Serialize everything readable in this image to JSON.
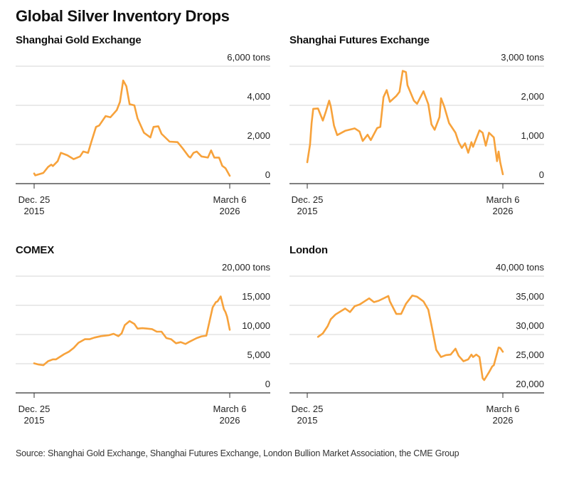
{
  "title": "Global Silver Inventory Drops",
  "source": "Source: Shanghai Gold Exchange, Shanghai Futures Exchange, London Bullion Market Association, the CME Group",
  "colors": {
    "line": "#f7a23b",
    "grid": "#d4d4d4",
    "axis": "#333333"
  },
  "chart_data": [
    {
      "type": "line",
      "title": "Shanghai Gold Exchange",
      "unit": "tons",
      "ylim": [
        0,
        6000
      ],
      "grid": true,
      "y_ticks": [
        {
          "value": 6000,
          "label": "6,000 tons"
        },
        {
          "value": 4000,
          "label": "4,000"
        },
        {
          "value": 2000,
          "label": "2,000"
        },
        {
          "value": 0,
          "label": "0"
        }
      ],
      "x_ticks": [
        {
          "date": "2015-12-25",
          "line1": "Dec. 25",
          "line2": "2015"
        },
        {
          "date": "2026-03-06",
          "line1": "March 6",
          "line2": "2026"
        }
      ],
      "points": [
        [
          "2015-12-25",
          520
        ],
        [
          "2016-01",
          420
        ],
        [
          "2016-06",
          545
        ],
        [
          "2016-09",
          850
        ],
        [
          "2016-11",
          970
        ],
        [
          "2016-12",
          900
        ],
        [
          "2017-03",
          1150
        ],
        [
          "2017-05",
          1575
        ],
        [
          "2017-09",
          1450
        ],
        [
          "2018-01",
          1250
        ],
        [
          "2018-05",
          1390
        ],
        [
          "2018-07",
          1640
        ],
        [
          "2018-10",
          1575
        ],
        [
          "2018-12",
          2120
        ],
        [
          "2019-03",
          2900
        ],
        [
          "2019-05",
          2970
        ],
        [
          "2019-09",
          3450
        ],
        [
          "2019-12",
          3390
        ],
        [
          "2020-04",
          3760
        ],
        [
          "2020-06",
          4180
        ],
        [
          "2020-08",
          5270
        ],
        [
          "2020-10",
          4970
        ],
        [
          "2020-12",
          4060
        ],
        [
          "2021-03",
          4000
        ],
        [
          "2021-05",
          3330
        ],
        [
          "2021-09",
          2600
        ],
        [
          "2022-01",
          2360
        ],
        [
          "2022-03",
          2900
        ],
        [
          "2022-06",
          2930
        ],
        [
          "2022-08",
          2545
        ],
        [
          "2023-01",
          2145
        ],
        [
          "2023-06",
          2120
        ],
        [
          "2023-09",
          1820
        ],
        [
          "2024-01",
          1390
        ],
        [
          "2024-02",
          1330
        ],
        [
          "2024-04",
          1575
        ],
        [
          "2024-06",
          1640
        ],
        [
          "2024-09",
          1390
        ],
        [
          "2025-01",
          1330
        ],
        [
          "2025-03",
          1700
        ],
        [
          "2025-05",
          1330
        ],
        [
          "2025-08",
          1330
        ],
        [
          "2025-10",
          910
        ],
        [
          "2025-12",
          790
        ],
        [
          "2026-03-06",
          400
        ]
      ]
    },
    {
      "type": "line",
      "title": "Shanghai Futures Exchange",
      "unit": "tons",
      "ylim": [
        0,
        3000
      ],
      "grid": true,
      "y_ticks": [
        {
          "value": 3000,
          "label": "3,000 tons"
        },
        {
          "value": 2000,
          "label": "2,000"
        },
        {
          "value": 1000,
          "label": "1,000"
        },
        {
          "value": 0,
          "label": "0"
        }
      ],
      "x_ticks": [
        {
          "date": "2015-12-25",
          "line1": "Dec. 25",
          "line2": "2015"
        },
        {
          "date": "2026-03-06",
          "line1": "March 6",
          "line2": "2026"
        }
      ],
      "points": [
        [
          "2015-12-25",
          545
        ],
        [
          "2016-02",
          1000
        ],
        [
          "2016-03",
          1545
        ],
        [
          "2016-04",
          1910
        ],
        [
          "2016-07",
          1920
        ],
        [
          "2016-10",
          1610
        ],
        [
          "2016-12",
          1850
        ],
        [
          "2017-02",
          2120
        ],
        [
          "2017-03",
          1970
        ],
        [
          "2017-05",
          1480
        ],
        [
          "2017-07",
          1240
        ],
        [
          "2017-12",
          1350
        ],
        [
          "2018-06",
          1410
        ],
        [
          "2018-09",
          1330
        ],
        [
          "2018-11",
          1090
        ],
        [
          "2019-02",
          1250
        ],
        [
          "2019-04",
          1110
        ],
        [
          "2019-08",
          1420
        ],
        [
          "2019-10",
          1450
        ],
        [
          "2019-12",
          2210
        ],
        [
          "2020-02",
          2390
        ],
        [
          "2020-04",
          2090
        ],
        [
          "2020-08",
          2240
        ],
        [
          "2020-10",
          2345
        ],
        [
          "2020-12",
          2880
        ],
        [
          "2021-02",
          2850
        ],
        [
          "2021-03",
          2515
        ],
        [
          "2021-07",
          2120
        ],
        [
          "2021-09",
          2040
        ],
        [
          "2022-01",
          2360
        ],
        [
          "2022-04",
          2030
        ],
        [
          "2022-06",
          1515
        ],
        [
          "2022-08",
          1375
        ],
        [
          "2022-11",
          1700
        ],
        [
          "2022-12",
          2180
        ],
        [
          "2023-02",
          1970
        ],
        [
          "2023-05",
          1545
        ],
        [
          "2023-09",
          1300
        ],
        [
          "2023-11",
          1060
        ],
        [
          "2024-01",
          910
        ],
        [
          "2024-03",
          1030
        ],
        [
          "2024-05",
          790
        ],
        [
          "2024-07",
          1060
        ],
        [
          "2024-08",
          940
        ],
        [
          "2024-12",
          1360
        ],
        [
          "2025-02",
          1300
        ],
        [
          "2025-04",
          970
        ],
        [
          "2025-06",
          1300
        ],
        [
          "2025-09",
          1180
        ],
        [
          "2025-11",
          575
        ],
        [
          "2025-12",
          820
        ],
        [
          "2026-01",
          545
        ],
        [
          "2026-03-06",
          240
        ]
      ]
    },
    {
      "type": "line",
      "title": "COMEX",
      "unit": "tons",
      "ylim": [
        0,
        20000
      ],
      "grid": true,
      "y_ticks": [
        {
          "value": 20000,
          "label": "20,000 tons"
        },
        {
          "value": 15000,
          "label": "15,000"
        },
        {
          "value": 10000,
          "label": "10,000"
        },
        {
          "value": 5000,
          "label": "5,000"
        },
        {
          "value": 0,
          "label": "0"
        }
      ],
      "x_ticks": [
        {
          "date": "2015-12-25",
          "line1": "Dec. 25",
          "line2": "2015"
        },
        {
          "date": "2026-03-06",
          "line1": "March 6",
          "line2": "2026"
        }
      ],
      "points": [
        [
          "2015-12-25",
          5060
        ],
        [
          "2016-03",
          4860
        ],
        [
          "2016-06",
          4740
        ],
        [
          "2016-09",
          5425
        ],
        [
          "2016-12",
          5750
        ],
        [
          "2017-02",
          5750
        ],
        [
          "2017-07",
          6640
        ],
        [
          "2017-10",
          7045
        ],
        [
          "2018-01",
          7690
        ],
        [
          "2018-04",
          8580
        ],
        [
          "2018-08",
          9190
        ],
        [
          "2018-11",
          9190
        ],
        [
          "2019-02",
          9470
        ],
        [
          "2019-06",
          9720
        ],
        [
          "2019-11",
          9880
        ],
        [
          "2020-02",
          10120
        ],
        [
          "2020-05",
          9720
        ],
        [
          "2020-07",
          10200
        ],
        [
          "2020-09",
          11620
        ],
        [
          "2020-12",
          12310
        ],
        [
          "2021-03",
          11820
        ],
        [
          "2021-05",
          11010
        ],
        [
          "2021-08",
          11090
        ],
        [
          "2021-11",
          11010
        ],
        [
          "2022-02",
          10930
        ],
        [
          "2022-05",
          10490
        ],
        [
          "2022-08",
          10490
        ],
        [
          "2022-11",
          9390
        ],
        [
          "2023-02",
          9190
        ],
        [
          "2023-05",
          8500
        ],
        [
          "2023-08",
          8700
        ],
        [
          "2023-11",
          8380
        ],
        [
          "2024-01",
          8700
        ],
        [
          "2024-06",
          9390
        ],
        [
          "2024-09",
          9680
        ],
        [
          "2024-12",
          9800
        ],
        [
          "2025-01",
          11010
        ],
        [
          "2025-04",
          14660
        ],
        [
          "2025-06",
          15550
        ],
        [
          "2025-07",
          15670
        ],
        [
          "2025-09",
          16520
        ],
        [
          "2025-11",
          14330
        ],
        [
          "2025-12",
          13850
        ],
        [
          "2026-01",
          13040
        ],
        [
          "2026-03-06",
          10810
        ]
      ]
    },
    {
      "type": "line",
      "title": "London",
      "unit": "tons",
      "ylim": [
        20000,
        40000
      ],
      "grid": true,
      "y_ticks": [
        {
          "value": 40000,
          "label": "40,000 tons"
        },
        {
          "value": 35000,
          "label": "35,000"
        },
        {
          "value": 30000,
          "label": "30,000"
        },
        {
          "value": 25000,
          "label": "25,000"
        },
        {
          "value": 20000,
          "label": "20,000"
        }
      ],
      "x_ticks": [
        {
          "date": "2015-12-25",
          "line1": "Dec. 25",
          "line2": "2015"
        },
        {
          "date": "2026-03-06",
          "line1": "March 6",
          "line2": "2026"
        }
      ],
      "points": [
        [
          "2016-07",
          29600
        ],
        [
          "2016-10",
          30200
        ],
        [
          "2017-01",
          31420
        ],
        [
          "2017-03",
          32630
        ],
        [
          "2017-06",
          33440
        ],
        [
          "2017-12",
          34450
        ],
        [
          "2018-03",
          33850
        ],
        [
          "2018-06",
          34860
        ],
        [
          "2018-09",
          35140
        ],
        [
          "2019-03",
          36200
        ],
        [
          "2019-06",
          35550
        ],
        [
          "2019-09",
          35790
        ],
        [
          "2020-03",
          36600
        ],
        [
          "2020-04",
          35670
        ],
        [
          "2020-08",
          33520
        ],
        [
          "2020-11",
          33520
        ],
        [
          "2021-02",
          35260
        ],
        [
          "2021-06",
          36680
        ],
        [
          "2021-09",
          36480
        ],
        [
          "2021-11",
          36070
        ],
        [
          "2022-01",
          35670
        ],
        [
          "2022-04",
          34250
        ],
        [
          "2022-06",
          31620
        ],
        [
          "2022-09",
          27370
        ],
        [
          "2022-12",
          26150
        ],
        [
          "2023-03",
          26480
        ],
        [
          "2023-06",
          26560
        ],
        [
          "2023-09",
          27570
        ],
        [
          "2023-11",
          26360
        ],
        [
          "2024-02",
          25430
        ],
        [
          "2024-05",
          25750
        ],
        [
          "2024-07",
          26560
        ],
        [
          "2024-08",
          26150
        ],
        [
          "2024-10",
          26560
        ],
        [
          "2024-12",
          26150
        ],
        [
          "2025-02",
          22510
        ],
        [
          "2025-03",
          22190
        ],
        [
          "2025-06",
          23520
        ],
        [
          "2025-08",
          24530
        ],
        [
          "2025-09",
          24740
        ],
        [
          "2025-12",
          27770
        ],
        [
          "2026-01",
          27690
        ],
        [
          "2026-03-06",
          27050
        ]
      ]
    }
  ]
}
